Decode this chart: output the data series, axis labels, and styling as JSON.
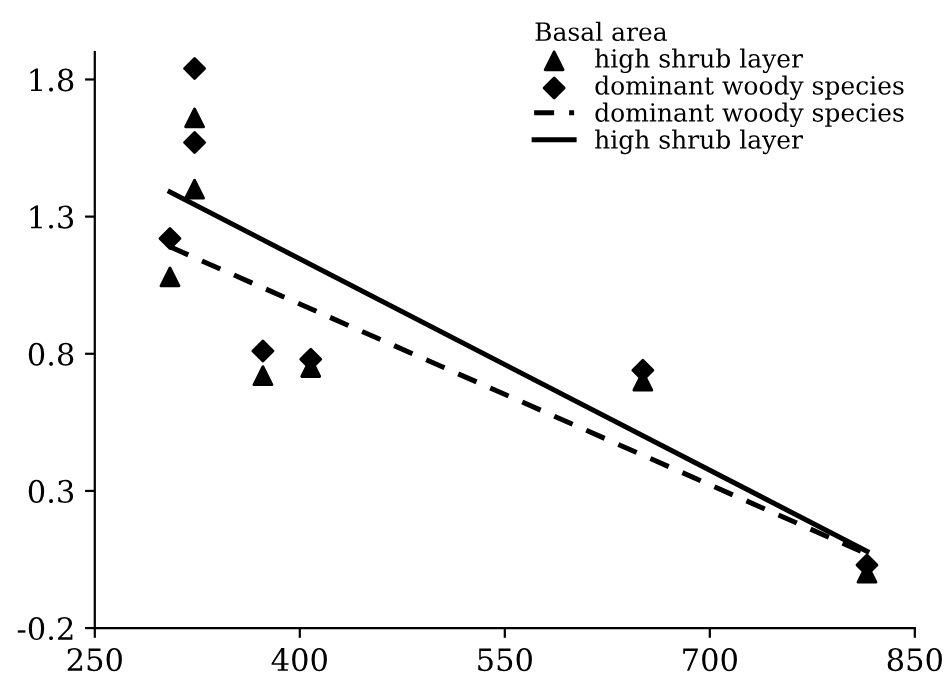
{
  "chart_data": {
    "type": "scatter",
    "legend_title": "Basal area",
    "legend": "top right",
    "grid": false,
    "xlim": [
      250,
      850
    ],
    "xticks": [
      250,
      400,
      550,
      700,
      850
    ],
    "ylim": [
      -0.2,
      1.9
    ],
    "yticks": [
      -0.2,
      0.3,
      0.8,
      1.3,
      1.8
    ],
    "series": [
      {
        "name": "high shrub layer",
        "marker": "triangle",
        "color": "#000000",
        "x": [
          305,
          323,
          323,
          373,
          408,
          651,
          815
        ],
        "values": [
          1.08,
          1.66,
          1.4,
          0.72,
          0.75,
          0.7,
          0.0
        ]
      },
      {
        "name": "dominant woody species",
        "marker": "diamond",
        "color": "#000000",
        "x": [
          305,
          323,
          323,
          373,
          408,
          651,
          815
        ],
        "values": [
          1.22,
          1.84,
          1.57,
          0.81,
          0.78,
          0.74,
          0.03
        ]
      },
      {
        "name": "dominant woody species",
        "type": "line",
        "line_style": "dashed",
        "marker": "none",
        "color": "#000000",
        "x": [
          305,
          815
        ],
        "values": [
          1.19,
          0.07
        ]
      },
      {
        "name": "high shrub layer",
        "type": "line",
        "line_style": "solid",
        "marker": "none",
        "color": "#000000",
        "x": [
          305,
          815
        ],
        "values": [
          1.39,
          0.08
        ]
      }
    ]
  }
}
